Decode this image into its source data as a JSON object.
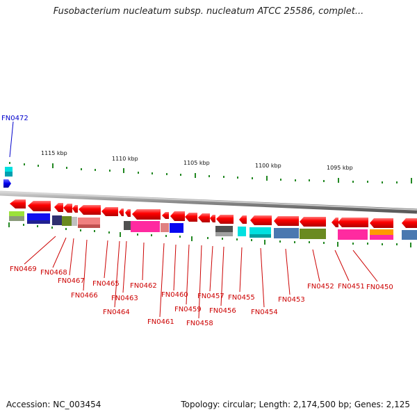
{
  "title": "Fusobacterium nucleatum subsp. nucleatum ATCC 25586, complet...",
  "footer": {
    "accession": "Accession: NC_003454",
    "info": "Topology: circular; Length: 2,174,500 bp; Genes: 2,125"
  },
  "scale": {
    "labels": [
      "1115 kbp",
      "1110 kbp",
      "1105 kbp",
      "1100 kbp",
      "1095 kbp"
    ]
  },
  "genes": [
    "FN0472",
    "FN0469",
    "FN0468",
    "FN0467",
    "FN0466",
    "FN0465",
    "FN0464",
    "FN0463",
    "FN0462",
    "FN0461",
    "FN0460",
    "FN0459",
    "FN0458",
    "FN0457",
    "FN0456",
    "FN0455",
    "FN0454",
    "FN0453",
    "FN0452",
    "FN0451",
    "FN0450"
  ],
  "colors": {
    "forward_gene": "#0000cc",
    "reverse_gene": "#ff0000",
    "backbone": "#888888",
    "tick": "#228822"
  }
}
